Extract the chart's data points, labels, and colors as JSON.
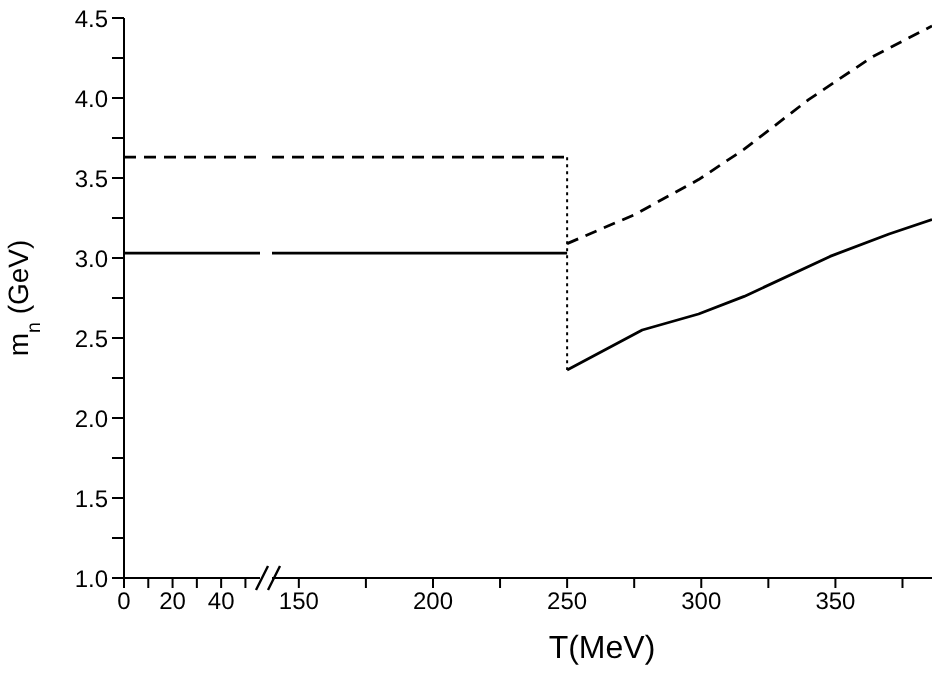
{
  "chart_data": [
    {
      "type": "line",
      "ylabel": "m$_{n}$ (GeV)",
      "xlim": [
        0,
        56
      ],
      "xticks": [
        0,
        {
          "value": 10,
          "label": null
        },
        20,
        {
          "value": 30,
          "label": null
        },
        40,
        {
          "value": 50,
          "label": null
        }
      ],
      "ylim": [
        1,
        4.5
      ],
      "yticks": [
        {
          "value": 1,
          "label": "1.0"
        },
        {
          "value": 1.25,
          "label": null
        },
        {
          "value": 1.5,
          "label": "1.5"
        },
        {
          "value": 1.75,
          "label": null
        },
        {
          "value": 2,
          "label": "2.0"
        },
        {
          "value": 2.25,
          "label": null
        },
        {
          "value": 2.5,
          "label": "2.5"
        },
        {
          "value": 2.75,
          "label": null
        },
        {
          "value": 3,
          "label": "3.0"
        },
        {
          "value": 3.25,
          "label": null
        },
        {
          "value": 3.5,
          "label": "3.5"
        },
        {
          "value": 3.75,
          "label": null
        },
        {
          "value": 4,
          "label": "4.0"
        },
        {
          "value": 4.25,
          "label": null
        },
        {
          "value": 4.5,
          "label": "4.5"
        }
      ],
      "marker": "none",
      "series": [
        {
          "color": "#000000",
          "line_style": "solid",
          "x": [
            0,
            56
          ],
          "values": [
            3.03,
            3.03
          ]
        },
        {
          "color": "#000000",
          "line_style": "dashed",
          "x": [
            0,
            56
          ],
          "values": [
            3.63,
            3.63
          ]
        }
      ]
    },
    {
      "type": "line",
      "xlabel": "T(MeV)",
      "xlim": [
        140,
        386
      ],
      "xticks": [
        150,
        {
          "value": 175,
          "label": null
        },
        200,
        {
          "value": 225,
          "label": null
        },
        250,
        {
          "value": 275,
          "label": null
        },
        300,
        {
          "value": 325,
          "label": null
        },
        350,
        {
          "value": 375,
          "label": null
        }
      ],
      "ylim": [
        1,
        4.5
      ],
      "tick_labels": "x",
      "marker": "none",
      "series": [
        {
          "color": "#000000",
          "line_style": "solid",
          "x": [
            140,
            250
          ],
          "values": [
            3.03,
            3.03
          ]
        },
        {
          "color": "#000000",
          "line_style": "solid",
          "x": [
            250,
            278,
            299,
            316,
            348,
            370,
            386
          ],
          "values": [
            2.3,
            2.55,
            2.65,
            2.76,
            3.01,
            3.15,
            3.24
          ]
        },
        {
          "color": "#000000",
          "line_style": "dashed",
          "x": [
            140,
            250
          ],
          "values": [
            3.63,
            3.63
          ]
        },
        {
          "color": "#000000",
          "line_style": "dashed",
          "x": [
            250,
            275,
            299,
            316,
            340,
            364,
            386
          ],
          "values": [
            3.09,
            3.27,
            3.49,
            3.68,
            3.99,
            4.26,
            4.45
          ]
        },
        {
          "color": "#000000",
          "line_style": "dotted",
          "x": [
            250,
            250
          ],
          "values": [
            3.63,
            2.3
          ]
        }
      ]
    }
  ]
}
